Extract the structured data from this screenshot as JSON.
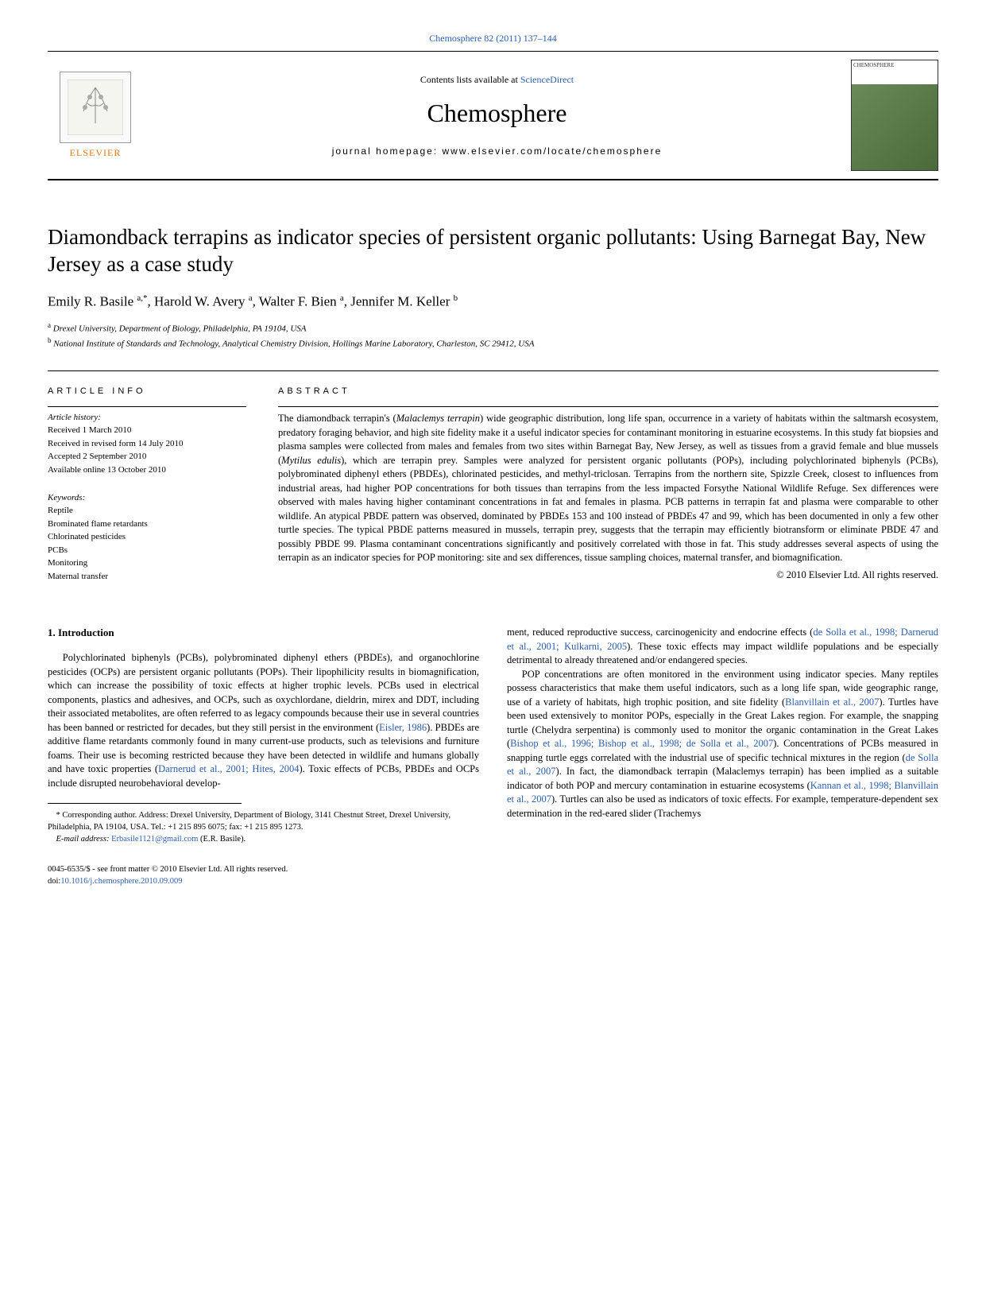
{
  "header": {
    "citation": "Chemosphere 82 (2011) 137–144",
    "contents_prefix": "Contents lists available at ",
    "contents_link": "ScienceDirect",
    "journal": "Chemosphere",
    "homepage_prefix": "journal homepage: ",
    "homepage_url": "www.elsevier.com/locate/chemosphere",
    "publisher": "ELSEVIER",
    "cover_label": "CHEMOSPHERE"
  },
  "title": "Diamondback terrapins as indicator species of persistent organic pollutants: Using Barnegat Bay, New Jersey as a case study",
  "authors_html": "Emily R. Basile <sup>a,*</sup>, Harold W. Avery <sup>a</sup>, Walter F. Bien <sup>a</sup>, Jennifer M. Keller <sup>b</sup>",
  "affiliations": {
    "a": "Drexel University, Department of Biology, Philadelphia, PA 19104, USA",
    "b": "National Institute of Standards and Technology, Analytical Chemistry Division, Hollings Marine Laboratory, Charleston, SC 29412, USA"
  },
  "info": {
    "heading": "ARTICLE INFO",
    "history_label": "Article history:",
    "history": [
      "Received 1 March 2010",
      "Received in revised form 14 July 2010",
      "Accepted 2 September 2010",
      "Available online 13 October 2010"
    ],
    "keywords_label": "Keywords:",
    "keywords": [
      "Reptile",
      "Brominated flame retardants",
      "Chlorinated pesticides",
      "PCBs",
      "Monitoring",
      "Maternal transfer"
    ]
  },
  "abstract": {
    "heading": "ABSTRACT",
    "text": "The diamondback terrapin's (Malaclemys terrapin) wide geographic distribution, long life span, occurrence in a variety of habitats within the saltmarsh ecosystem, predatory foraging behavior, and high site fidelity make it a useful indicator species for contaminant monitoring in estuarine ecosystems. In this study fat biopsies and plasma samples were collected from males and females from two sites within Barnegat Bay, New Jersey, as well as tissues from a gravid female and blue mussels (Mytilus edulis), which are terrapin prey. Samples were analyzed for persistent organic pollutants (POPs), including polychlorinated biphenyls (PCBs), polybrominated diphenyl ethers (PBDEs), chlorinated pesticides, and methyl-triclosan. Terrapins from the northern site, Spizzle Creek, closest to influences from industrial areas, had higher POP concentrations for both tissues than terrapins from the less impacted Forsythe National Wildlife Refuge. Sex differences were observed with males having higher contaminant concentrations in fat and females in plasma. PCB patterns in terrapin fat and plasma were comparable to other wildlife. An atypical PBDE pattern was observed, dominated by PBDEs 153 and 100 instead of PBDEs 47 and 99, which has been documented in only a few other turtle species. The typical PBDE patterns measured in mussels, terrapin prey, suggests that the terrapin may efficiently biotransform or eliminate PBDE 47 and possibly PBDE 99. Plasma contaminant concentrations significantly and positively correlated with those in fat. This study addresses several aspects of using the terrapin as an indicator species for POP monitoring: site and sex differences, tissue sampling choices, maternal transfer, and biomagnification.",
    "copyright": "© 2010 Elsevier Ltd. All rights reserved."
  },
  "section1": {
    "heading": "1. Introduction",
    "p1_a": "Polychlorinated biphenyls (PCBs), polybrominated diphenyl ethers (PBDEs), and organochlorine pesticides (OCPs) are persistent organic pollutants (POPs). Their lipophilicity results in biomagnification, which can increase the possibility of toxic effects at higher trophic levels. PCBs used in electrical components, plastics and adhesives, and OCPs, such as oxychlordane, dieldrin, mirex and DDT, including their associated metabolites, are often referred to as legacy compounds because their use in several countries has been banned or restricted for decades, but they still persist in the environment (",
    "p1_cite1": "Eisler, 1986",
    "p1_b": "). PBDEs are additive flame retardants commonly found in many current-use products, such as televisions and furniture foams. Their use is becoming restricted because they have been detected in wildlife and humans globally and have toxic properties (",
    "p1_cite2": "Darnerud et al., 2001; Hites, 2004",
    "p1_c": "). Toxic effects of PCBs, PBDEs and OCPs include disrupted neurobehavioral develop-",
    "p2_a": "ment, reduced reproductive success, carcinogenicity and endocrine effects (",
    "p2_cite1": "de Solla et al., 1998; Darnerud et al., 2001; Kulkarni, 2005",
    "p2_b": "). These toxic effects may impact wildlife populations and be especially detrimental to already threatened and/or endangered species.",
    "p3_a": "POP concentrations are often monitored in the environment using indicator species. Many reptiles possess characteristics that make them useful indicators, such as a long life span, wide geographic range, use of a variety of habitats, high trophic position, and site fidelity (",
    "p3_cite1": "Blanvillain et al., 2007",
    "p3_b": "). Turtles have been used extensively to monitor POPs, especially in the Great Lakes region. For example, the snapping turtle (Chelydra serpentina) is commonly used to monitor the organic contamination in the Great Lakes (",
    "p3_cite2": "Bishop et al., 1996; Bishop et al., 1998; de Solla et al., 2007",
    "p3_c": "). Concentrations of PCBs measured in snapping turtle eggs correlated with the industrial use of specific technical mixtures in the region (",
    "p3_cite3": "de Solla et al., 2007",
    "p3_d": "). In fact, the diamondback terrapin (Malaclemys terrapin) has been implied as a suitable indicator of both POP and mercury contamination in estuarine ecosystems (",
    "p3_cite4": "Kannan et al., 1998; Blanvillain et al., 2007",
    "p3_e": "). Turtles can also be used as indicators of toxic effects. For example, temperature-dependent sex determination in the red-eared slider (Trachemys"
  },
  "footnote": {
    "corr": "* Corresponding author. Address: Drexel University, Department of Biology, 3141 Chestnut Street, Drexel University, Philadelphia, PA 19104, USA. Tel.: +1 215 895 6075; fax: +1 215 895 1273.",
    "email_label": "E-mail address: ",
    "email": "Erbasile1121@gmail.com",
    "email_suffix": " (E.R. Basile)."
  },
  "footer": {
    "line1": "0045-6535/$ - see front matter © 2010 Elsevier Ltd. All rights reserved.",
    "doi_label": "doi:",
    "doi": "10.1016/j.chemosphere.2010.09.009"
  }
}
